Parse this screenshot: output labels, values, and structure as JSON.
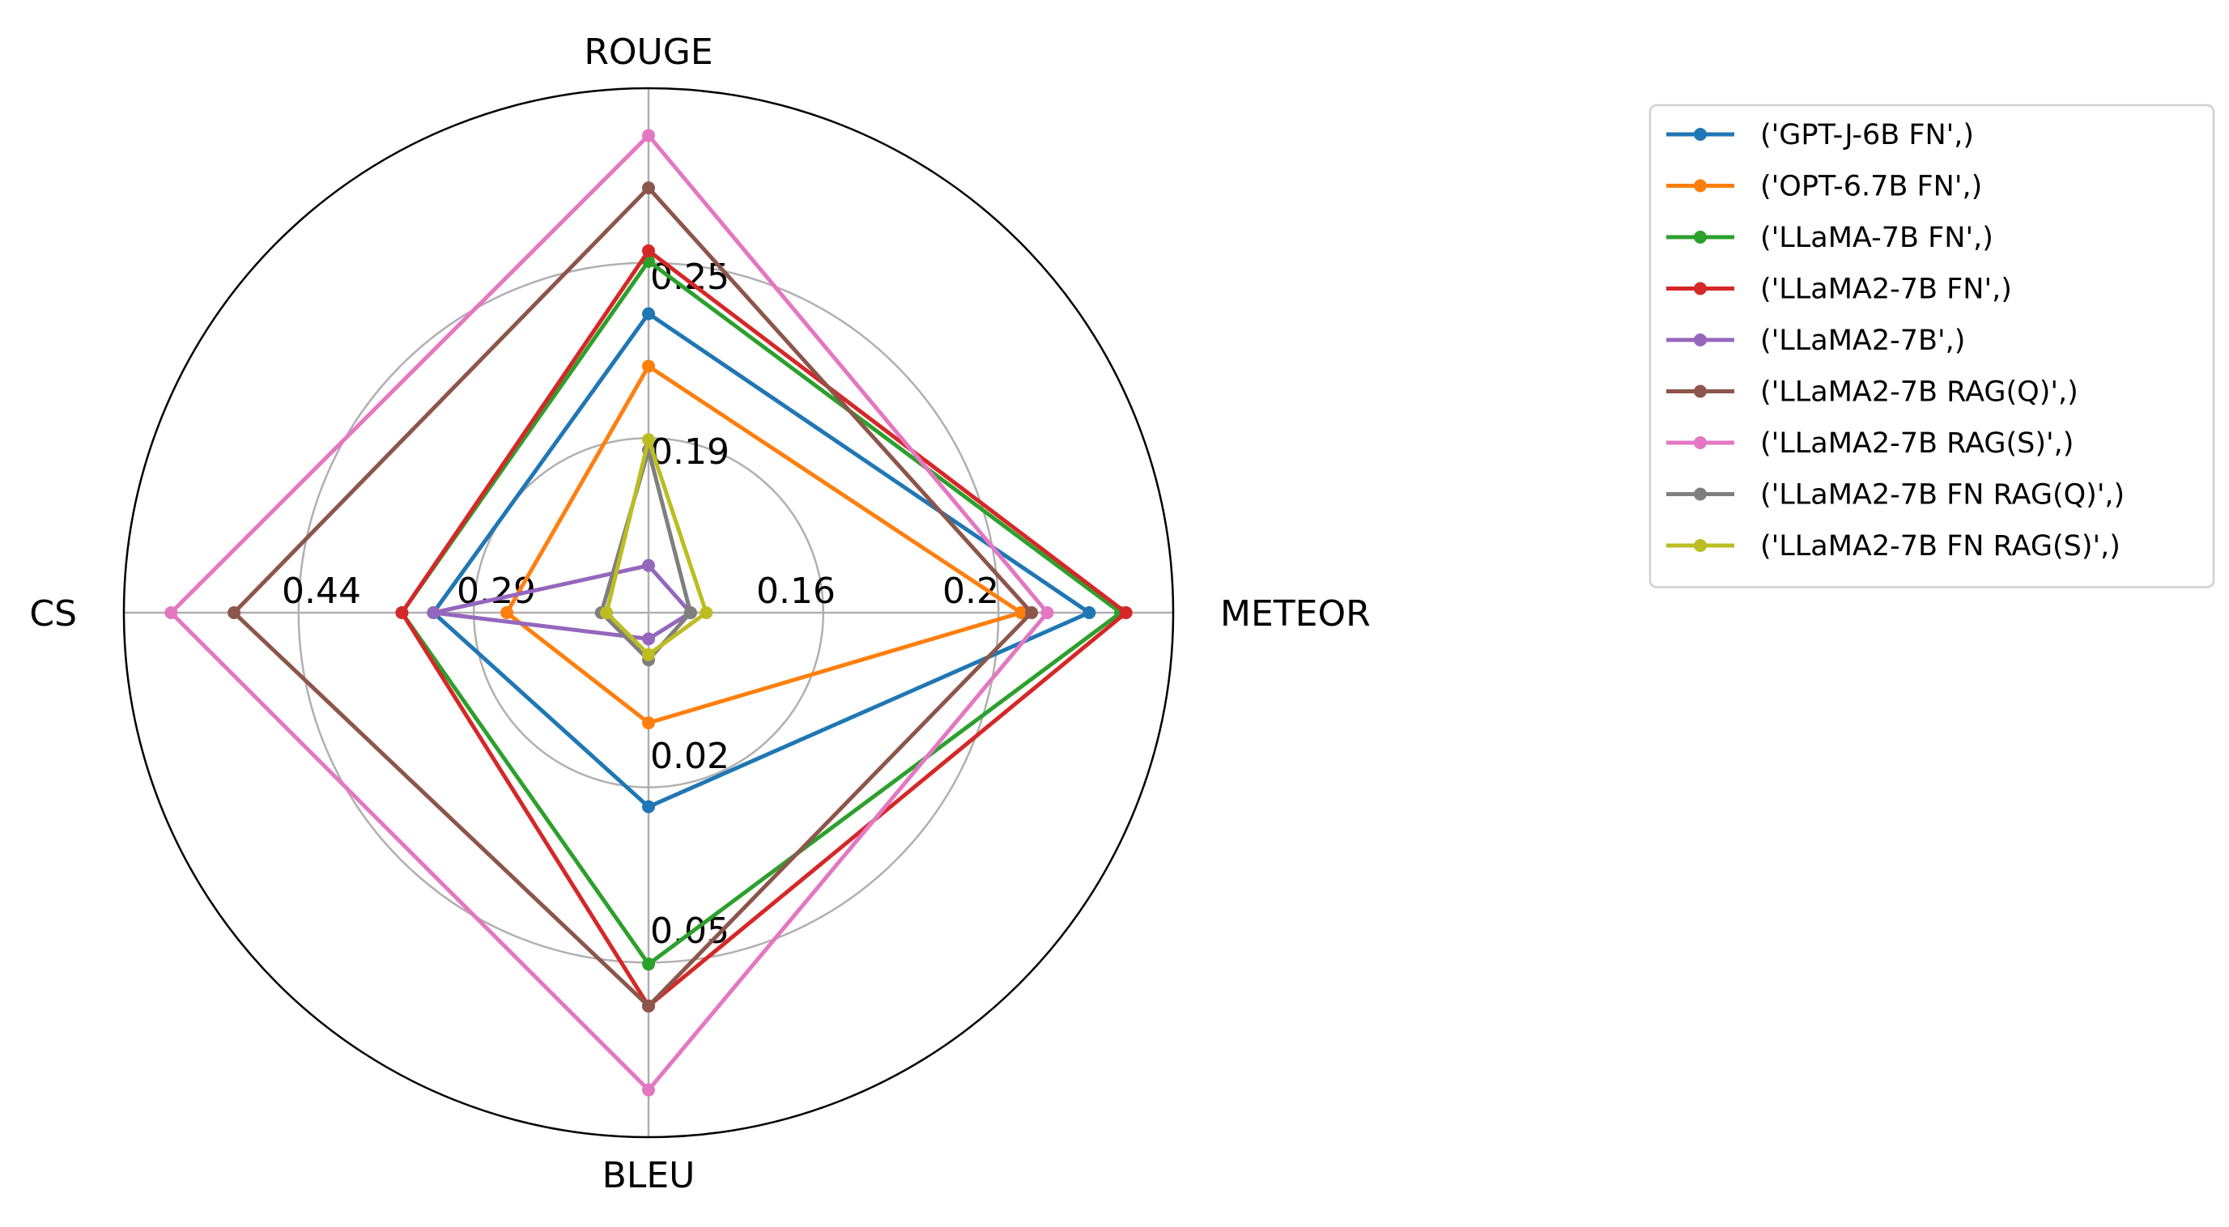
{
  "chart_data": {
    "type": "radar",
    "axes": [
      "ROUGE",
      "METEOR",
      "BLEU",
      "CS"
    ],
    "axis_ticks": {
      "ROUGE": [
        "0.19",
        "0.25"
      ],
      "METEOR": [
        "0.16",
        "0.2"
      ],
      "BLEU": [
        "0.02",
        "0.05"
      ],
      "CS": [
        "0.29",
        "0.44"
      ]
    },
    "grid": true,
    "legend_position": "right",
    "series": [
      {
        "name": "('GPT-J-6B FN',)",
        "color": "#1f77b4",
        "values": [
          0.57,
          0.84,
          0.37,
          0.41
        ]
      },
      {
        "name": "('OPT-6.7B FN',)",
        "color": "#ff7f0e",
        "values": [
          0.47,
          0.71,
          0.21,
          0.27
        ]
      },
      {
        "name": "('LLaMA-7B FN',)",
        "color": "#2ca02c",
        "values": [
          0.67,
          0.9,
          0.67,
          0.47
        ]
      },
      {
        "name": "('LLaMA2-7B FN',)",
        "color": "#d62728",
        "values": [
          0.69,
          0.91,
          0.75,
          0.47
        ]
      },
      {
        "name": "('LLaMA2-7B',)",
        "color": "#9467bd",
        "values": [
          0.09,
          0.08,
          0.05,
          0.41
        ]
      },
      {
        "name": "('LLaMA2-7B RAG(Q)',)",
        "color": "#8c564b",
        "values": [
          0.81,
          0.73,
          0.75,
          0.79
        ]
      },
      {
        "name": "('LLaMA2-7B RAG(S)',)",
        "color": "#e377c2",
        "values": [
          0.91,
          0.76,
          0.91,
          0.91
        ]
      },
      {
        "name": "('LLaMA2-7B FN RAG(Q)',)",
        "color": "#7f7f7f",
        "values": [
          0.31,
          0.08,
          0.09,
          0.09
        ]
      },
      {
        "name": "('LLaMA2-7B FN RAG(S)',)",
        "color": "#bcbd22",
        "values": [
          0.33,
          0.11,
          0.08,
          0.08
        ]
      }
    ]
  }
}
